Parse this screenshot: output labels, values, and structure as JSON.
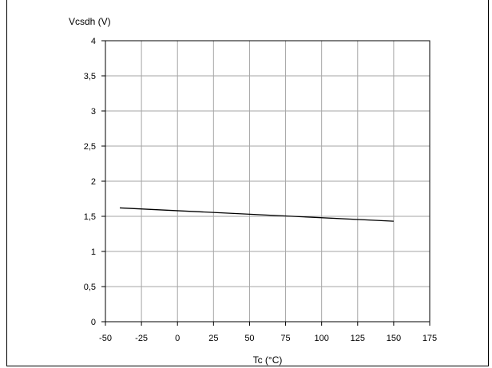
{
  "chart_data": {
    "type": "line",
    "title": "",
    "xlabel": "Tc (°C)",
    "ylabel": "Vcsdh (V)",
    "xlim": [
      -50,
      175
    ],
    "ylim": [
      0,
      4
    ],
    "x_ticks": [
      -50,
      -25,
      0,
      25,
      50,
      75,
      100,
      125,
      150,
      175
    ],
    "y_ticks": [
      0,
      0.5,
      1,
      1.5,
      2,
      2.5,
      3,
      3.5,
      4
    ],
    "x_tick_labels": [
      "-50",
      "-25",
      "0",
      "25",
      "50",
      "75",
      "100",
      "125",
      "150",
      "175"
    ],
    "y_tick_labels": [
      "0",
      "0,5",
      "1",
      "1,5",
      "2",
      "2,5",
      "3",
      "3,5",
      "4"
    ],
    "grid": true,
    "series": [
      {
        "x": [
          -40,
          150
        ],
        "y": [
          1.62,
          1.43
        ],
        "color": "#000000"
      }
    ]
  }
}
